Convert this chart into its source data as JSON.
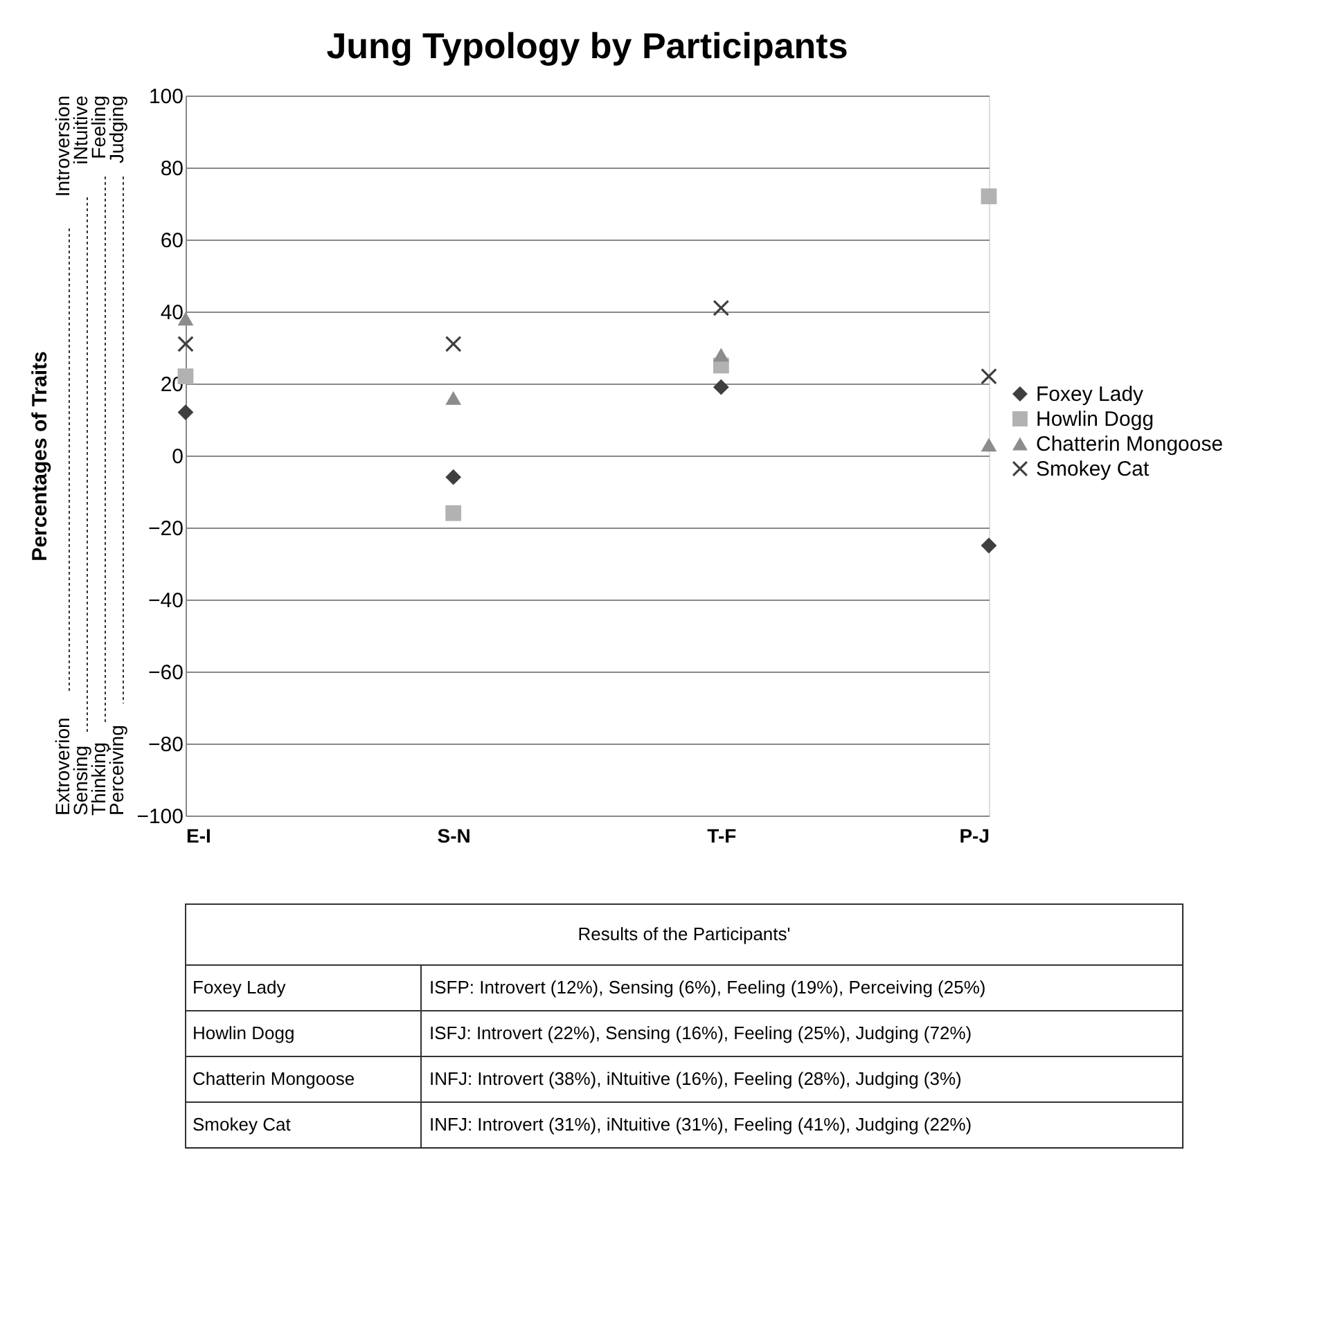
{
  "chart_data": {
    "type": "scatter",
    "title": "Jung Typology by Participants",
    "ylabel": "Percentages of Traits",
    "categories": [
      "E-I",
      "S-N",
      "T-F",
      "P-J"
    ],
    "series": [
      {
        "name": "Foxey Lady",
        "color": "#3f3f3f",
        "marker": "diamond",
        "values": [
          12,
          -6,
          19,
          -25
        ]
      },
      {
        "name": "Howlin Dogg",
        "color": "#b2b2b2",
        "marker": "square",
        "values": [
          22,
          -16,
          25,
          72
        ]
      },
      {
        "name": "Chatterin Mongoose",
        "color": "#8c8c8c",
        "marker": "triangle",
        "values": [
          38,
          16,
          28,
          3
        ]
      },
      {
        "name": "Smokey Cat",
        "color": "#3f3f3f",
        "marker": "cross",
        "values": [
          31,
          31,
          41,
          22
        ]
      }
    ],
    "ylim": [
      -100,
      100
    ],
    "yticks": [
      -100,
      -80,
      -60,
      -40,
      -20,
      0,
      20,
      40,
      60,
      80,
      100
    ],
    "grid": "y",
    "legend": "right",
    "annotations": [
      "Introversion",
      "iNtuitive",
      "Feeling",
      "Judging",
      "Extroverion",
      "Sensing",
      "Thinking",
      "Perceiving",
      "Results of the Participants'",
      "Foxey Lady",
      "ISFP: Introvert (12%), Sensing (6%), Feeling (19%), Perceiving (25%)",
      "Howlin Dogg",
      "ISFJ: Introvert (22%), Sensing (16%), Feeling (25%), Judging (72%)",
      "Chatterin Mongoose",
      "INFJ: Introvert (38%), iNtuitive (16%), Feeling (28%), Judging (3%)",
      "Smokey Cat",
      "INFJ: Introvert (31%), iNtuitive (31%), Feeling (41%), Judging (22%)"
    ]
  }
}
